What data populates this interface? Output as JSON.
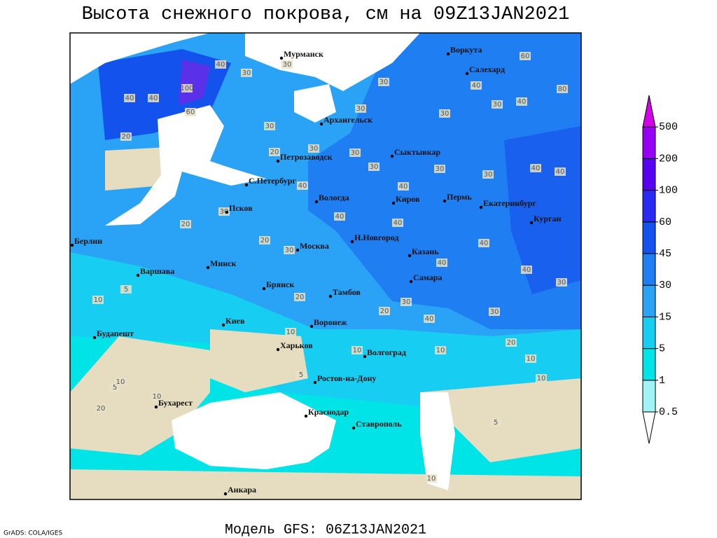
{
  "title": "Высота снежного покрова, см на 09Z13JAN2021",
  "footer": "Модель GFS: 06Z13JAN2021",
  "credit": "GrADS: COLA/IGES",
  "cities": [
    "Мурманск",
    "Воркута",
    "Салехард",
    "Архангельск",
    "Сыктывкар",
    "Петрозаводск",
    "С.Петербург",
    "Вологда",
    "Киров",
    "Пермь",
    "Екатеринбург",
    "Курган",
    "Псков",
    "Берлин",
    "Минск",
    "Москва",
    "Н.Новгород",
    "Казань",
    "Варшава",
    "Брянск",
    "Тамбов",
    "Самара",
    "Киев",
    "Воронеж",
    "Будапешт",
    "Харьков",
    "Волгоград",
    "Ростов-на-Дону",
    "Бухарест",
    "Краснодар",
    "Ставрополь",
    "Анкара"
  ],
  "contour_labels": [
    40,
    30,
    30,
    100,
    40,
    40,
    60,
    30,
    20,
    30,
    30,
    40,
    30,
    40,
    30,
    60,
    80,
    30,
    20,
    30,
    30,
    30,
    30,
    40,
    40,
    40,
    40,
    40,
    30,
    20,
    20,
    30,
    40,
    40,
    40,
    40,
    30,
    5,
    10,
    20,
    30,
    20,
    40,
    30,
    20,
    10,
    10,
    10,
    10,
    10,
    5,
    10,
    10,
    20,
    5,
    5,
    10
  ],
  "legend": {
    "levels": [
      0.5,
      1,
      5,
      15,
      30,
      45,
      60,
      100,
      200,
      500
    ],
    "colors": [
      "#ffffff",
      "#a0f4f6",
      "#00e4e8",
      "#18cdf2",
      "#2aa2f6",
      "#1e7ef2",
      "#1452ee",
      "#2a2af2",
      "#5a00f0",
      "#9600f5",
      "#d200e8"
    ]
  }
}
